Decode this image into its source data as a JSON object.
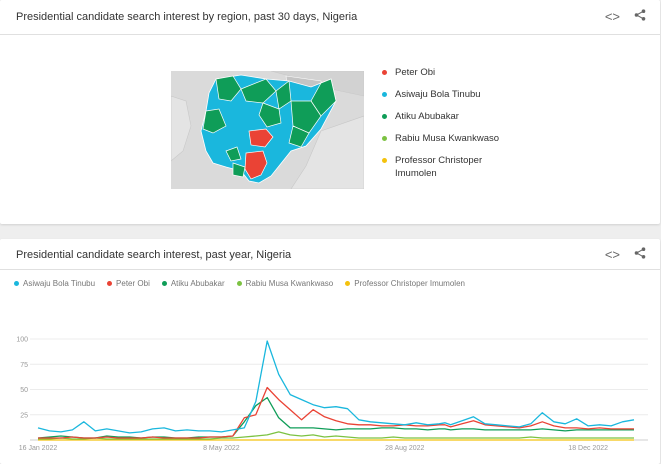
{
  "card1": {
    "title": "Presidential candidate search interest by region, past 30 days, Nigeria",
    "legend": [
      {
        "label": "Peter Obi",
        "color": "#ea4335"
      },
      {
        "label": "Asiwaju Bola Tinubu",
        "color": "#1ab7dd"
      },
      {
        "label": "Atiku Abubakar",
        "color": "#0f9d58"
      },
      {
        "label": "Rabiu Musa Kwankwaso",
        "color": "#7cc242"
      },
      {
        "label": "Professor Christoper Imumolen",
        "color": "#f4c20d"
      }
    ]
  },
  "card2": {
    "title": "Presidential candidate search interest, past year, Nigeria",
    "legend": [
      {
        "label": "Asiwaju Bola Tinubu",
        "color": "#1ab7dd"
      },
      {
        "label": "Peter Obi",
        "color": "#ea4335"
      },
      {
        "label": "Atiku Abubakar",
        "color": "#0f9d58"
      },
      {
        "label": "Rabiu Musa Kwankwaso",
        "color": "#7cc242"
      },
      {
        "label": "Professor Christoper Imumolen",
        "color": "#f4c20d"
      }
    ]
  },
  "icons": {
    "embed": "embed-code-icon",
    "share": "share-icon"
  },
  "chart_data": {
    "type": "line",
    "title": "Presidential candidate search interest, past year, Nigeria",
    "xlabel": "",
    "ylabel": "",
    "ylim": [
      0,
      100
    ],
    "yticks": [
      25,
      50,
      75,
      100
    ],
    "xtick_labels": [
      "16 Jan 2022",
      "8 May 2022",
      "28 Aug 2022",
      "18 Dec 2022"
    ],
    "xtick_positions": [
      0,
      16,
      32,
      48
    ],
    "grid": true,
    "legend_position": "top",
    "x": [
      0,
      1,
      2,
      3,
      4,
      5,
      6,
      7,
      8,
      9,
      10,
      11,
      12,
      13,
      14,
      15,
      16,
      17,
      18,
      19,
      20,
      21,
      22,
      23,
      24,
      25,
      26,
      27,
      28,
      29,
      30,
      31,
      32,
      33,
      34,
      35,
      35.5,
      36,
      37,
      38,
      39,
      40,
      41,
      42,
      43,
      44,
      45,
      46,
      47,
      48,
      49,
      50,
      51,
      52
    ],
    "series": [
      {
        "name": "Asiwaju Bola Tinubu",
        "color": "#1ab7dd",
        "values": [
          12,
          9,
          8,
          10,
          18,
          9,
          11,
          9,
          7,
          8,
          11,
          12,
          9,
          10,
          9,
          9,
          8,
          10,
          12,
          38,
          98,
          65,
          45,
          40,
          35,
          32,
          33,
          31,
          20,
          18,
          17,
          16,
          15,
          17,
          15,
          16,
          17,
          15,
          19,
          23,
          16,
          15,
          14,
          13,
          16,
          27,
          18,
          16,
          21,
          14,
          15,
          14,
          18,
          20
        ]
      },
      {
        "name": "Peter Obi",
        "color": "#ea4335",
        "values": [
          2,
          2,
          2,
          3,
          2,
          2,
          3,
          2,
          2,
          2,
          3,
          2,
          2,
          2,
          2,
          3,
          3,
          4,
          22,
          25,
          52,
          40,
          30,
          20,
          30,
          23,
          19,
          16,
          15,
          15,
          14,
          14,
          15,
          14,
          14,
          15,
          15,
          13,
          16,
          19,
          15,
          14,
          13,
          12,
          14,
          18,
          14,
          12,
          12,
          11,
          12,
          11,
          11,
          11
        ]
      },
      {
        "name": "Atiku Abubakar",
        "color": "#0f9d58",
        "values": [
          2,
          3,
          4,
          3,
          2,
          2,
          4,
          3,
          3,
          2,
          3,
          3,
          2,
          2,
          3,
          3,
          3,
          4,
          18,
          34,
          42,
          22,
          12,
          12,
          12,
          11,
          10,
          11,
          11,
          11,
          12,
          12,
          11,
          11,
          10,
          11,
          11,
          10,
          11,
          11,
          10,
          10,
          10,
          10,
          10,
          11,
          10,
          9,
          10,
          10,
          10,
          10,
          10,
          10
        ]
      },
      {
        "name": "Rabiu Musa Kwankwaso",
        "color": "#7cc242",
        "values": [
          1,
          1,
          2,
          1,
          1,
          2,
          1,
          1,
          1,
          1,
          1,
          1,
          1,
          1,
          1,
          1,
          2,
          2,
          3,
          4,
          5,
          8,
          5,
          4,
          5,
          3,
          4,
          3,
          2,
          2,
          2,
          3,
          2,
          2,
          2,
          2,
          2,
          2,
          2,
          2,
          2,
          2,
          2,
          2,
          3,
          2,
          2,
          2,
          2,
          2,
          2,
          2,
          2,
          2
        ]
      },
      {
        "name": "Professor Christoper Imumolen",
        "color": "#f4c20d",
        "values": [
          0,
          0,
          0,
          0,
          0,
          0,
          0,
          0,
          0,
          0,
          0,
          0,
          0,
          0,
          0,
          0,
          0,
          0,
          0,
          0,
          0,
          0,
          0,
          0,
          0,
          0,
          0,
          0,
          0,
          0,
          0,
          0,
          0,
          0,
          0,
          0,
          0,
          0,
          0,
          0,
          0,
          0,
          0,
          0,
          0,
          0,
          0,
          0,
          0,
          0,
          0,
          0,
          0,
          0
        ]
      }
    ]
  }
}
